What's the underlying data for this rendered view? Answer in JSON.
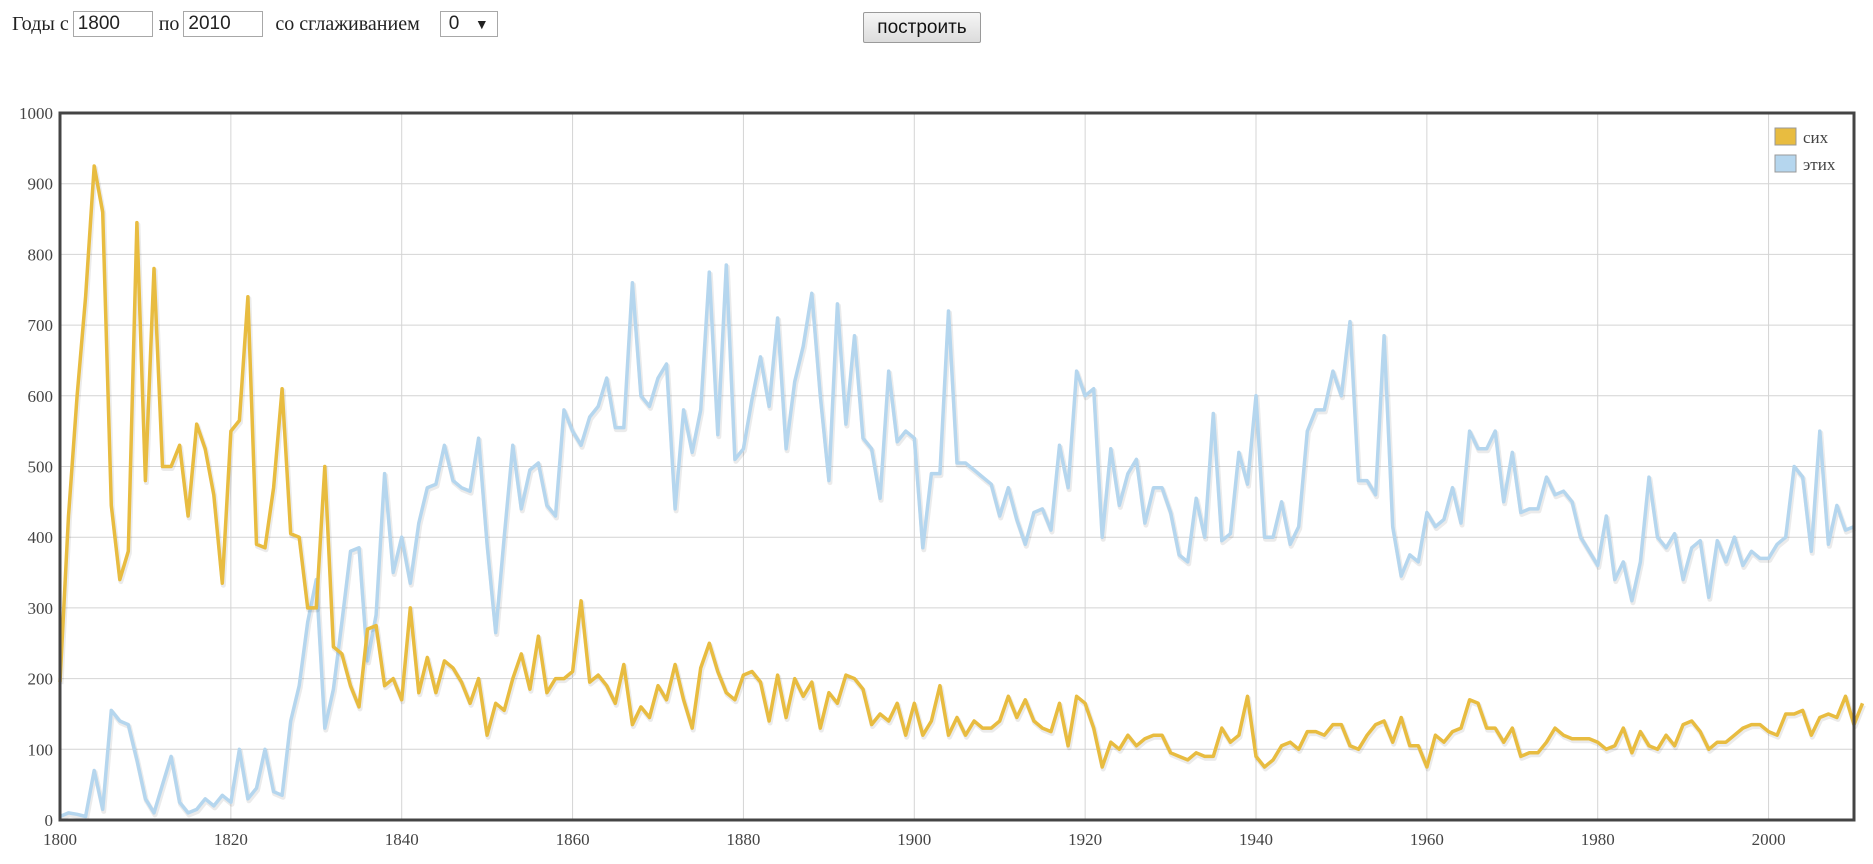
{
  "controls": {
    "years_from_label": "Годы с",
    "year_from": "1800",
    "to_label": "по",
    "year_to": "2010",
    "smoothing_label": "со сглаживанием",
    "smoothing_value": "0",
    "build_button": "построить"
  },
  "chart_data": {
    "type": "line",
    "xlim": [
      1800,
      2010
    ],
    "ylim": [
      0,
      1000
    ],
    "x_ticks": [
      1800,
      1820,
      1840,
      1860,
      1880,
      1900,
      1920,
      1940,
      1960,
      1980,
      2000
    ],
    "y_ticks": [
      0,
      100,
      200,
      300,
      400,
      500,
      600,
      700,
      800,
      900,
      1000
    ],
    "grid": true,
    "legend_position": "top-right",
    "x_start": 1800,
    "series": [
      {
        "name": "сих",
        "color": "#e8bc40",
        "values": [
          195,
          430,
          600,
          740,
          925,
          860,
          445,
          340,
          380,
          845,
          480,
          780,
          500,
          500,
          530,
          430,
          560,
          525,
          460,
          335,
          550,
          565,
          740,
          390,
          385,
          470,
          610,
          405,
          400,
          300,
          300,
          500,
          245,
          235,
          190,
          160,
          270,
          275,
          190,
          200,
          170,
          300,
          180,
          230,
          180,
          225,
          215,
          195,
          165,
          200,
          120,
          165,
          155,
          200,
          235,
          185,
          260,
          180,
          200,
          200,
          210,
          310,
          195,
          205,
          190,
          165,
          220,
          135,
          160,
          145,
          190,
          170,
          220,
          170,
          130,
          215,
          250,
          210,
          180,
          170,
          205,
          210,
          195,
          140,
          205,
          145,
          200,
          175,
          195,
          130,
          180,
          165,
          205,
          200,
          185,
          135,
          150,
          140,
          165,
          120,
          165,
          120,
          140,
          190,
          120,
          145,
          120,
          140,
          130,
          130,
          140,
          175,
          145,
          170,
          140,
          130,
          125,
          165,
          105,
          175,
          165,
          130,
          75,
          110,
          100,
          120,
          105,
          115,
          120,
          120,
          95,
          90,
          85,
          95,
          90,
          90,
          130,
          110,
          120,
          175,
          90,
          75,
          85,
          105,
          110,
          100,
          125,
          125,
          120,
          135,
          135,
          105,
          100,
          120,
          135,
          140,
          110,
          145,
          105,
          105,
          75,
          120,
          110,
          125,
          130,
          170,
          165,
          130,
          130,
          110,
          130,
          90,
          95,
          95,
          110,
          130,
          120,
          115,
          115,
          115,
          110,
          100,
          105,
          130,
          95,
          125,
          105,
          100,
          120,
          105,
          135,
          140,
          125,
          100,
          110,
          110,
          120,
          130,
          135,
          135,
          125,
          120,
          150,
          150,
          155,
          120,
          145,
          150,
          145,
          175,
          135,
          165
        ]
      },
      {
        "name": "этих",
        "color": "#b5d6ee",
        "values": [
          5,
          10,
          8,
          5,
          70,
          15,
          155,
          140,
          135,
          85,
          30,
          10,
          50,
          90,
          25,
          10,
          15,
          30,
          20,
          35,
          25,
          100,
          30,
          45,
          100,
          40,
          35,
          140,
          190,
          280,
          340,
          130,
          185,
          280,
          380,
          385,
          225,
          290,
          490,
          350,
          400,
          335,
          420,
          470,
          475,
          530,
          480,
          470,
          465,
          540,
          390,
          265,
          400,
          530,
          440,
          495,
          505,
          445,
          430,
          580,
          550,
          530,
          570,
          585,
          625,
          555,
          555,
          760,
          600,
          585,
          625,
          645,
          440,
          580,
          520,
          580,
          775,
          545,
          785,
          510,
          525,
          595,
          655,
          585,
          710,
          525,
          620,
          670,
          745,
          600,
          480,
          730,
          560,
          685,
          540,
          525,
          455,
          635,
          535,
          550,
          540,
          385,
          490,
          490,
          720,
          505,
          505,
          495,
          485,
          475,
          430,
          470,
          425,
          390,
          435,
          440,
          410,
          530,
          470,
          635,
          600,
          610,
          400,
          525,
          445,
          490,
          510,
          420,
          470,
          470,
          435,
          375,
          365,
          455,
          400,
          575,
          395,
          405,
          520,
          475,
          600,
          400,
          400,
          450,
          390,
          415,
          550,
          580,
          580,
          635,
          600,
          705,
          480,
          480,
          460,
          685,
          415,
          345,
          375,
          365,
          435,
          415,
          425,
          470,
          420,
          550,
          525,
          525,
          550,
          450,
          520,
          435,
          440,
          440,
          485,
          460,
          465,
          450,
          400,
          380,
          360,
          430,
          340,
          365,
          310,
          365,
          485,
          400,
          385,
          405,
          340,
          385,
          395,
          315,
          395,
          365,
          400,
          360,
          380,
          370,
          370,
          390,
          400,
          500,
          485,
          380,
          550,
          390,
          445,
          410,
          415
        ]
      }
    ]
  },
  "legend": {
    "item1": "сих",
    "item2": "этих"
  }
}
